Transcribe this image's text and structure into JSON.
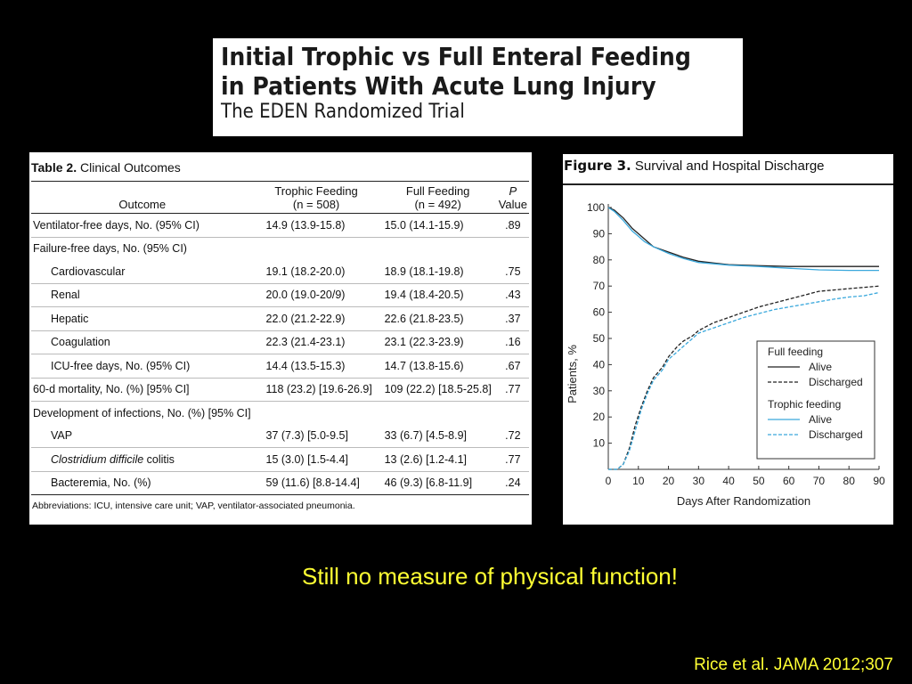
{
  "header": {
    "title_line1": "Initial Trophic vs Full Enteral Feeding",
    "title_line2": "in Patients With Acute Lung Injury",
    "subtitle": "The EDEN Randomized Trial"
  },
  "table": {
    "caption_bold": "Table 2.",
    "caption_text": "Clinical Outcomes",
    "headers": {
      "outcome": "Outcome",
      "trophic_l1": "Trophic Feeding",
      "trophic_l2": "(n = 508)",
      "full_l1": "Full Feeding",
      "full_l2": "(n = 492)",
      "p_l1": "P",
      "p_l2": "Value"
    },
    "rows": [
      {
        "label": "Ventilator-free days, No. (95% CI)",
        "trophic": "14.9 (13.9-15.8)",
        "full": "15.0 (14.1-15.9)",
        "p": ".89",
        "indent": false,
        "group": false
      },
      {
        "label": "Failure-free days, No. (95% CI)",
        "trophic": "",
        "full": "",
        "p": "",
        "indent": false,
        "group": true
      },
      {
        "label": "Cardiovascular",
        "trophic": "19.1 (18.2-20.0)",
        "full": "18.9 (18.1-19.8)",
        "p": ".75",
        "indent": true,
        "group": false
      },
      {
        "label": "Renal",
        "trophic": "20.0 (19.0-20/9)",
        "full": "19.4 (18.4-20.5)",
        "p": ".43",
        "indent": true,
        "group": false
      },
      {
        "label": "Hepatic",
        "trophic": "22.0 (21.2-22.9)",
        "full": "22.6 (21.8-23.5)",
        "p": ".37",
        "indent": true,
        "group": false
      },
      {
        "label": "Coagulation",
        "trophic": "22.3 (21.4-23.1)",
        "full": "23.1 (22.3-23.9)",
        "p": ".16",
        "indent": true,
        "group": false
      },
      {
        "label": "ICU-free days, No. (95% CI)",
        "trophic": "14.4 (13.5-15.3)",
        "full": "14.7 (13.8-15.6)",
        "p": ".67",
        "indent": true,
        "group": false
      },
      {
        "label": "60-d mortality, No. (%) [95% CI]",
        "trophic": "118 (23.2) [19.6-26.9]",
        "full": "109 (22.2) [18.5-25.8]",
        "p": ".77",
        "indent": false,
        "group": false
      },
      {
        "label": "Development of infections, No. (%) [95% CI]",
        "trophic": "",
        "full": "",
        "p": "",
        "indent": false,
        "group": true
      },
      {
        "label": "VAP",
        "trophic": "37 (7.3) [5.0-9.5]",
        "full": "33 (6.7) [4.5-8.9]",
        "p": ".72",
        "indent": true,
        "group": false
      },
      {
        "label": "Clostridium difficile colitis",
        "trophic": "15 (3.0) [1.5-4.4]",
        "full": "13 (2.6) [1.2-4.1]",
        "p": ".77",
        "indent": true,
        "group": false
      },
      {
        "label": "Bacteremia, No. (%)",
        "trophic": "59 (11.6) [8.8-14.4]",
        "full": "46 (9.3) [6.8-11.9]",
        "p": ".24",
        "indent": true,
        "group": false
      }
    ],
    "abbreviations": "Abbreviations: ICU, intensive care unit; VAP, ventilator-associated pneumonia."
  },
  "figure": {
    "caption_bold": "Figure 3.",
    "caption_text": "Survival and Hospital Discharge"
  },
  "chart_data": {
    "type": "line",
    "title": "Survival and Hospital Discharge",
    "xlabel": "Days After Randomization",
    "ylabel": "Patients, %",
    "xlim": [
      0,
      90
    ],
    "ylim": [
      0,
      100
    ],
    "x_ticks": [
      "0",
      "10",
      "20",
      "30",
      "40",
      "50",
      "60",
      "70",
      "80",
      "90"
    ],
    "y_ticks": [
      "10",
      "20",
      "30",
      "40",
      "50",
      "60",
      "70",
      "80",
      "90",
      "100"
    ],
    "grid": false,
    "legend_position": "bottom-right",
    "legend_groups": [
      {
        "title": "Full feeding",
        "entries": [
          "Alive",
          "Discharged"
        ]
      },
      {
        "title": "Trophic feeding",
        "entries": [
          "Alive",
          "Discharged"
        ]
      }
    ],
    "colors": {
      "full": "#222222",
      "trophic": "#3aa8dc"
    },
    "series": [
      {
        "name": "Alive",
        "group": "Full feeding",
        "color": "#222222",
        "dash": "solid",
        "x": [
          0,
          2,
          5,
          8,
          10,
          12,
          15,
          20,
          25,
          30,
          35,
          40,
          50,
          60,
          70,
          80,
          90
        ],
        "y": [
          100,
          99,
          96,
          92,
          90,
          88,
          85,
          83,
          81,
          79.5,
          78.8,
          78.2,
          77.8,
          77.5,
          77.5,
          77.5,
          77.5
        ]
      },
      {
        "name": "Discharged",
        "group": "Full feeding",
        "color": "#222222",
        "dash": "dashed",
        "x": [
          0,
          3,
          5,
          7,
          9,
          11,
          13,
          15,
          18,
          20,
          23,
          25,
          28,
          30,
          35,
          40,
          45,
          50,
          55,
          60,
          65,
          70,
          75,
          80,
          85,
          90
        ],
        "y": [
          0,
          0,
          2,
          8,
          17,
          24,
          30,
          35,
          39,
          43,
          47,
          49,
          51,
          53,
          56,
          58,
          60,
          62,
          63.5,
          65,
          66.5,
          68,
          68.5,
          69,
          69.5,
          70
        ]
      },
      {
        "name": "Alive",
        "group": "Trophic feeding",
        "color": "#3aa8dc",
        "dash": "solid",
        "x": [
          0,
          2,
          5,
          8,
          10,
          12,
          15,
          20,
          25,
          30,
          35,
          40,
          50,
          60,
          70,
          80,
          90
        ],
        "y": [
          100,
          98.5,
          95,
          91,
          89,
          87,
          85,
          82.5,
          80.5,
          79,
          78.5,
          78,
          77.5,
          76.8,
          76.2,
          76,
          76
        ]
      },
      {
        "name": "Discharged",
        "group": "Trophic feeding",
        "color": "#3aa8dc",
        "dash": "dashed",
        "x": [
          0,
          3,
          5,
          7,
          9,
          11,
          13,
          15,
          18,
          20,
          23,
          25,
          28,
          30,
          35,
          40,
          45,
          50,
          55,
          60,
          65,
          70,
          75,
          80,
          85,
          90
        ],
        "y": [
          0,
          0,
          2,
          7,
          15,
          23,
          29,
          34,
          38,
          42,
          45,
          47,
          50,
          52,
          54,
          56,
          58,
          59.5,
          61,
          62,
          63,
          64,
          65,
          65.8,
          66.3,
          67.5
        ]
      }
    ]
  },
  "footnote": "Still no measure of physical function!",
  "citation": "Rice et al. JAMA 2012;307"
}
